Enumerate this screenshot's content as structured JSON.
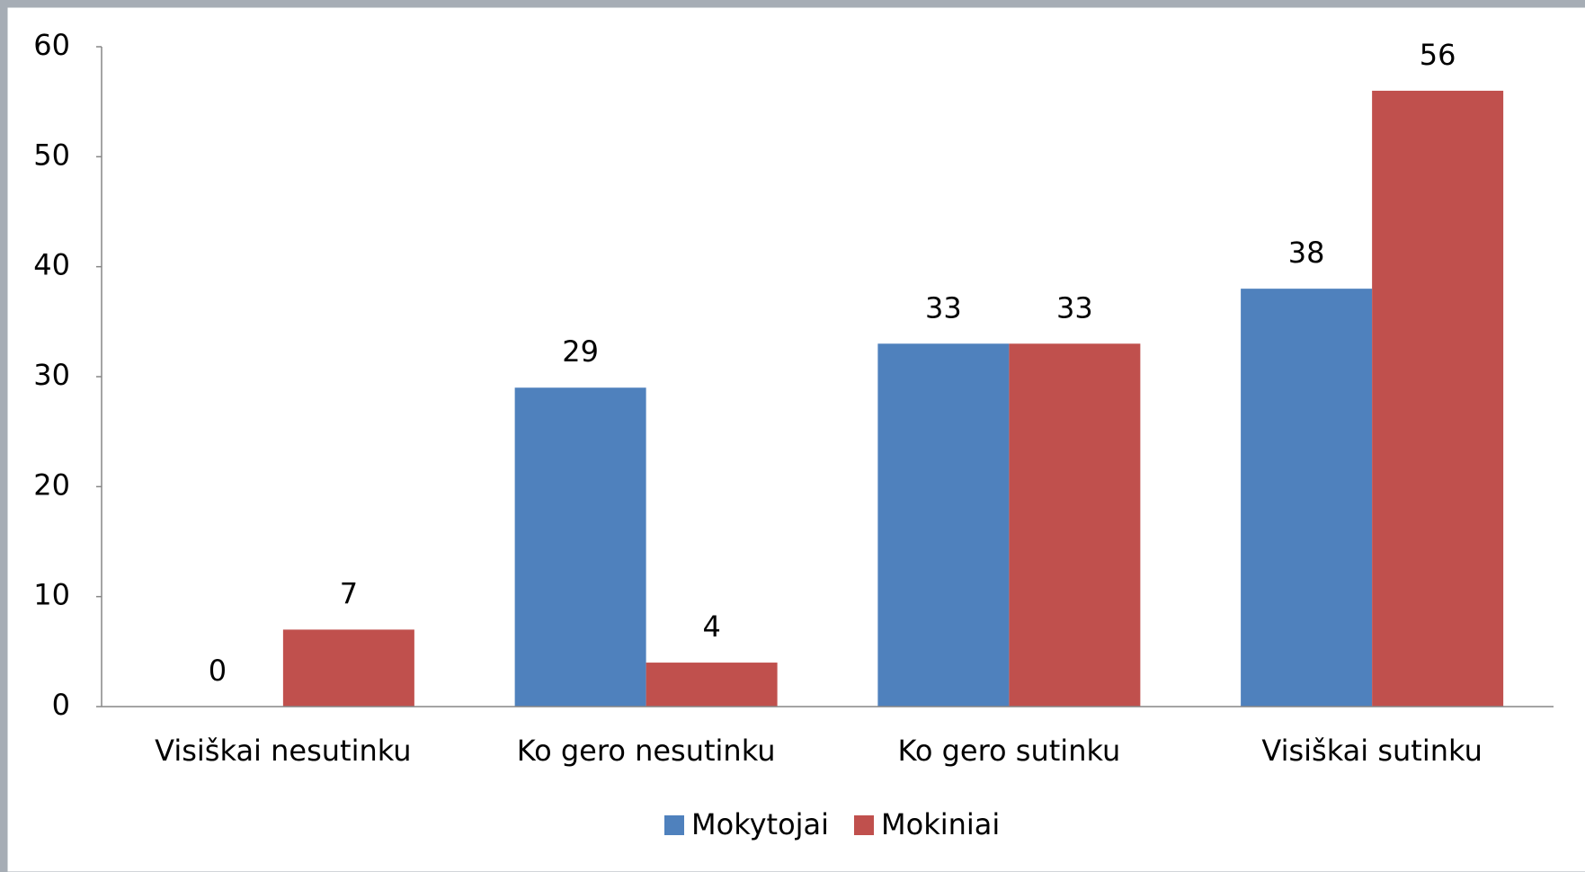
{
  "chart_data": {
    "type": "bar",
    "categories": [
      "Visiškai nesutinku",
      "Ko gero nesutinku",
      "Ko gero sutinku",
      "Visiškai sutinku"
    ],
    "series": [
      {
        "name": "Mokytojai",
        "color": "#4f81bd",
        "values": [
          0,
          29,
          33,
          38
        ]
      },
      {
        "name": "Mokiniai",
        "color": "#c0504d",
        "values": [
          7,
          4,
          33,
          56
        ]
      }
    ],
    "ylim": [
      0,
      60
    ],
    "yticks": [
      0,
      10,
      20,
      30,
      40,
      50,
      60
    ],
    "grid": false,
    "legend": "bottom"
  }
}
